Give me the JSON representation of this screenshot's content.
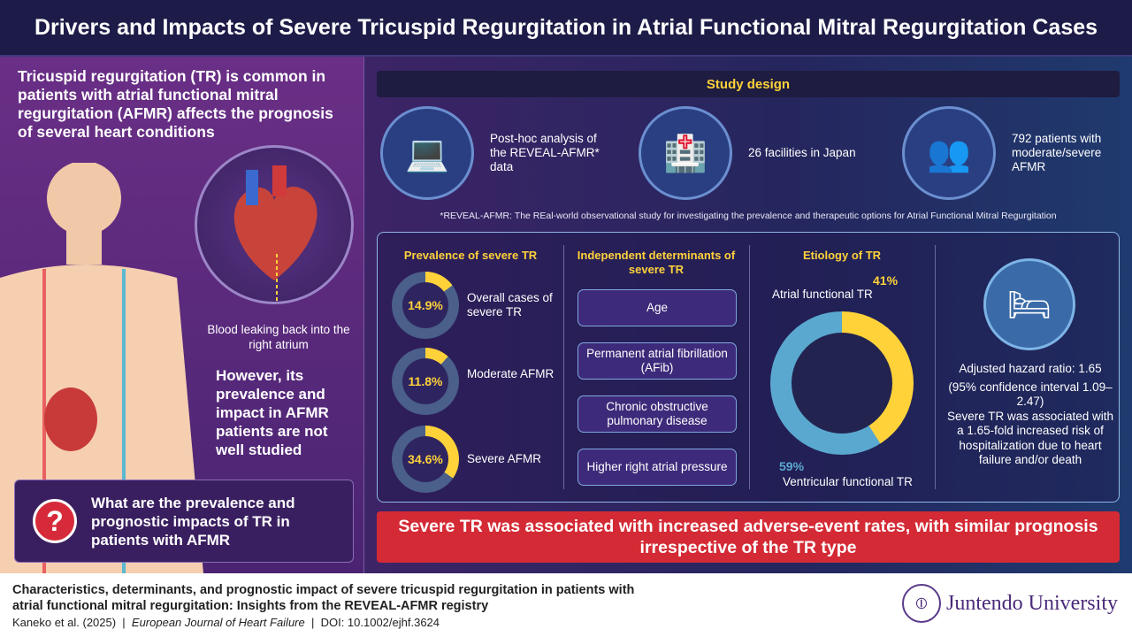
{
  "title": "Drivers and Impacts of Severe Tricuspid Regurgitation in Atrial Functional Mitral Regurgitation Cases",
  "left": {
    "intro": "Tricuspid regurgitation (TR) is common in patients with atrial functional mitral regurgitation (AFMR) affects the prognosis of several heart conditions",
    "leak_caption": "Blood leaking back into the right atrium",
    "however": "However, its prevalence and impact in AFMR patients are not well studied",
    "question": "What are the prevalence and prognostic impacts of TR in patients with AFMR"
  },
  "study_design": {
    "header": "Study design",
    "items": [
      {
        "icon": "laptop-report-icon",
        "text": "Post-hoc analysis of the REVEAL-AFMR* data"
      },
      {
        "icon": "hospital-icon",
        "text": "26 facilities in Japan"
      },
      {
        "icon": "patients-group-icon",
        "text": "792 patients with moderate/severe AFMR"
      }
    ],
    "footnote": "*REVEAL-AFMR: The REal-world observational study for investigating the prevalence and therapeutic options for Atrial Functional Mitral Regurgitation"
  },
  "prevalence": {
    "header": "Prevalence of severe TR",
    "items": [
      {
        "value": 14.9,
        "label_text": "14.9%",
        "desc": "Overall cases of severe TR"
      },
      {
        "value": 11.8,
        "label_text": "11.8%",
        "desc": "Moderate AFMR"
      },
      {
        "value": 34.6,
        "label_text": "34.6%",
        "desc": "Severe AFMR"
      }
    ]
  },
  "determinants": {
    "header": "Independent determinants of severe TR",
    "items": [
      "Age",
      "Permanent atrial fibrillation (AFib)",
      "Chronic obstructive pulmonary disease",
      "Higher right atrial pressure"
    ]
  },
  "etiology": {
    "header": "Etiology of TR",
    "atrial_value": 41,
    "atrial_pct": "41%",
    "atrial_label": "Atrial functional TR",
    "ventricular_value": 59,
    "ventricular_pct": "59%",
    "ventricular_label": "Ventricular functional TR"
  },
  "hazard": {
    "ratio": "Adjusted hazard ratio: 1.65",
    "ci": "(95% confidence interval 1.09–2.47)",
    "desc": "Severe TR was associated with a 1.65-fold increased risk of hospitalization due to heart failure and/or death"
  },
  "banner": "Severe TR was associated with increased adverse-event rates, with similar prognosis irrespective of the TR type",
  "footer": {
    "paper_title": "Characteristics, determinants, and prognostic impact of severe tricuspid regurgitation in patients with atrial functional mitral regurgitation: Insights from the REVEAL-AFMR registry",
    "authors": "Kaneko et al. (2025)",
    "journal": "European Journal of Heart Failure",
    "doi": "DOI: 10.1002/ejhf.3624",
    "logo_name": "Juntendo University"
  },
  "colors": {
    "yellow": "#ffd23a",
    "ring": "#4a5f8a",
    "blue": "#5aa8d0",
    "red": "#d42a35"
  }
}
